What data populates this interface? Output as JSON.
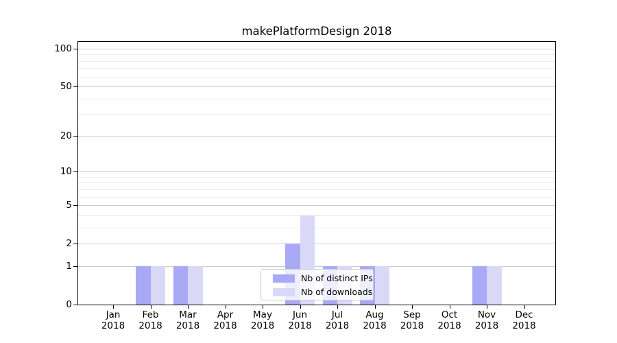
{
  "title": "makePlatformDesign 2018",
  "x_axis": {
    "months": [
      "Jan",
      "Feb",
      "Mar",
      "Apr",
      "May",
      "Jun",
      "Jul",
      "Aug",
      "Sep",
      "Oct",
      "Nov",
      "Dec"
    ],
    "year": "2018"
  },
  "y_axis": {
    "tick_labels": [
      "100",
      "50",
      "20",
      "10",
      "5",
      "2",
      "1",
      "0"
    ]
  },
  "legend": {
    "items": [
      {
        "label": "Nb of distinct IPs",
        "color": "#a9a9f6"
      },
      {
        "label": "Nb of downloads",
        "color": "#d9d9f7"
      }
    ]
  },
  "colors": {
    "major_grid": "#cccccc",
    "minor_grid": "#ebebeb",
    "spine": "#000000",
    "background": "#ffffff",
    "legend_border": "#cccccc"
  },
  "chart_data": {
    "type": "bar",
    "title": "makePlatformDesign 2018",
    "categories": [
      "Jan 2018",
      "Feb 2018",
      "Mar 2018",
      "Apr 2018",
      "May 2018",
      "Jun 2018",
      "Jul 2018",
      "Aug 2018",
      "Sep 2018",
      "Oct 2018",
      "Nov 2018",
      "Dec 2018"
    ],
    "series": [
      {
        "name": "Nb of distinct IPs",
        "color": "#a9a9f6",
        "values": [
          0,
          1,
          1,
          0,
          0,
          2,
          1,
          1,
          0,
          0,
          1,
          0
        ]
      },
      {
        "name": "Nb of downloads",
        "color": "#d9d9f7",
        "values": [
          0,
          1,
          1,
          0,
          0,
          4,
          1,
          1,
          0,
          0,
          1,
          0
        ]
      }
    ],
    "y_scale": "log10(value+1)",
    "y_major_ticks": [
      0,
      1,
      2,
      5,
      10,
      20,
      50,
      100
    ],
    "y_minor_gridlines": [
      3,
      4,
      6,
      7,
      8,
      9,
      30,
      40,
      60,
      70,
      80,
      90
    ],
    "ylim": [
      0,
      115
    ],
    "xlabel": "",
    "ylabel": "",
    "grid": true,
    "legend_position": "lower center inside plot"
  }
}
